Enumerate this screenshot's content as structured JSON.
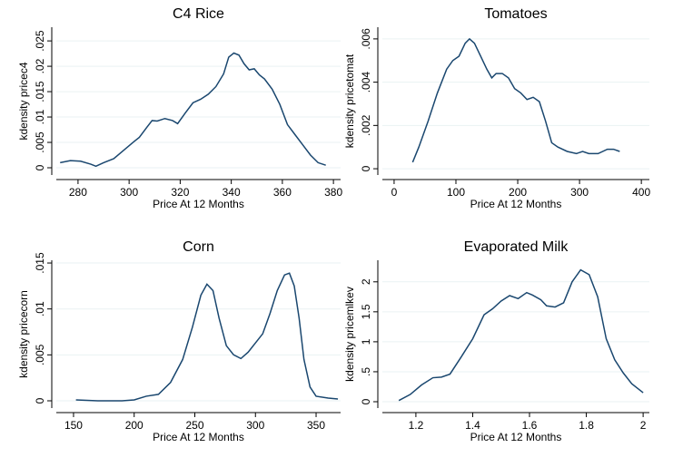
{
  "chart_data": [
    {
      "type": "line",
      "title": "C4 Rice",
      "xlabel": "Price At 12 Months",
      "ylabel": "kdensity pricec4",
      "color": "#1a476f",
      "grid": true,
      "xlim": [
        271.5,
        382.8
      ],
      "ylim": [
        -0.00143,
        0.0277
      ],
      "xticks": [
        280,
        300,
        320,
        340,
        360,
        380
      ],
      "yticks": [
        0,
        {
          "value": 0.005,
          "label": ".005"
        },
        {
          "value": 0.01,
          "label": ".01"
        },
        {
          "value": 0.015,
          "label": ".015"
        },
        {
          "value": 0.02,
          "label": ".02"
        },
        {
          "value": 0.025,
          "label": ".025"
        }
      ],
      "x": [
        273,
        277,
        281,
        285,
        287,
        290,
        294,
        298,
        302,
        304,
        307,
        309,
        311,
        314,
        317,
        319,
        322,
        325,
        328,
        331,
        334,
        337,
        339,
        341,
        343,
        345,
        347,
        349,
        351,
        353,
        356,
        359,
        362,
        365,
        368,
        371,
        374,
        377
      ],
      "values": [
        0.001,
        0.0014,
        0.0013,
        0.0007,
        0.0003,
        0.001,
        0.0018,
        0.0035,
        0.0052,
        0.006,
        0.008,
        0.0093,
        0.0092,
        0.0097,
        0.0093,
        0.0087,
        0.0108,
        0.0128,
        0.0135,
        0.0145,
        0.016,
        0.0185,
        0.0218,
        0.0226,
        0.0222,
        0.0205,
        0.0193,
        0.0195,
        0.0183,
        0.0175,
        0.0155,
        0.0125,
        0.0085,
        0.0065,
        0.0045,
        0.0025,
        0.001,
        0.0005
      ]
    },
    {
      "type": "line",
      "title": "Tomatoes",
      "xlabel": "Price At 12 Months",
      "ylabel": "kdensity pricetomat",
      "color": "#1a476f",
      "grid": true,
      "xlim": [
        -19,
        413
      ],
      "ylim": [
        -0.00029,
        0.00654
      ],
      "xticks": [
        0,
        100,
        200,
        300,
        400
      ],
      "yticks": [
        0,
        {
          "value": 0.002,
          "label": ".002"
        },
        {
          "value": 0.004,
          "label": ".004"
        },
        {
          "value": 0.006,
          "label": ".006"
        }
      ],
      "x": [
        30,
        40,
        55,
        70,
        85,
        95,
        105,
        115,
        122,
        130,
        140,
        150,
        158,
        165,
        175,
        185,
        195,
        205,
        215,
        225,
        235,
        245,
        255,
        265,
        280,
        295,
        305,
        315,
        330,
        345,
        355,
        365
      ],
      "values": [
        0.0003,
        0.001,
        0.0022,
        0.0035,
        0.0046,
        0.005,
        0.0052,
        0.0058,
        0.006,
        0.0058,
        0.0052,
        0.0046,
        0.0042,
        0.0044,
        0.0044,
        0.0042,
        0.0037,
        0.0035,
        0.0032,
        0.0033,
        0.0031,
        0.0022,
        0.0012,
        0.001,
        0.0008,
        0.0007,
        0.0008,
        0.0007,
        0.0007,
        0.0009,
        0.0009,
        0.0008
      ]
    },
    {
      "type": "line",
      "title": "Corn",
      "xlabel": "Price At 12 Months",
      "ylabel": "kdensity pricecorn",
      "color": "#1a476f",
      "grid": true,
      "xlim": [
        135.8,
        370.2
      ],
      "ylim": [
        -0.00079,
        0.0153
      ],
      "xticks": [
        150,
        200,
        250,
        300,
        350
      ],
      "yticks": [
        0,
        {
          "value": 0.005,
          "label": ".005"
        },
        {
          "value": 0.01,
          "label": ".01"
        },
        {
          "value": 0.015,
          "label": ".015"
        }
      ],
      "x": [
        152,
        170,
        190,
        200,
        210,
        220,
        230,
        240,
        248,
        255,
        260,
        265,
        270,
        276,
        282,
        288,
        294,
        300,
        306,
        312,
        318,
        324,
        328,
        332,
        336,
        340,
        345,
        350,
        360,
        368
      ],
      "values": [
        0.0001,
        0,
        0,
        0.0001,
        0.0005,
        0.0007,
        0.002,
        0.0045,
        0.008,
        0.0115,
        0.0127,
        0.012,
        0.009,
        0.006,
        0.005,
        0.0046,
        0.0053,
        0.0063,
        0.0073,
        0.0095,
        0.012,
        0.0137,
        0.0139,
        0.0125,
        0.009,
        0.0045,
        0.0015,
        0.0005,
        0.0003,
        0.0002
      ]
    },
    {
      "type": "line",
      "title": "Evaporated Milk",
      "xlabel": "Price At 12 Months",
      "ylabel": "kdensity pricemlkev",
      "color": "#1a476f",
      "grid": true,
      "xlim": [
        1.082,
        2.022
      ],
      "ylim": [
        -0.106,
        2.36
      ],
      "xticks": [
        1.2,
        1.4,
        1.6,
        1.8,
        2
      ],
      "yticks": [
        0,
        {
          "value": 0.5,
          "label": ".5"
        },
        1,
        1.5,
        2
      ],
      "x": [
        1.14,
        1.18,
        1.22,
        1.26,
        1.29,
        1.32,
        1.36,
        1.4,
        1.44,
        1.47,
        1.5,
        1.53,
        1.56,
        1.59,
        1.61,
        1.64,
        1.66,
        1.69,
        1.72,
        1.75,
        1.78,
        1.81,
        1.84,
        1.87,
        1.9,
        1.93,
        1.96,
        2
      ],
      "values": [
        0.02,
        0.12,
        0.28,
        0.4,
        0.41,
        0.46,
        0.75,
        1.05,
        1.45,
        1.55,
        1.68,
        1.77,
        1.72,
        1.82,
        1.78,
        1.7,
        1.6,
        1.58,
        1.65,
        2,
        2.2,
        2.12,
        1.75,
        1.05,
        0.7,
        0.48,
        0.3,
        0.15
      ]
    }
  ]
}
